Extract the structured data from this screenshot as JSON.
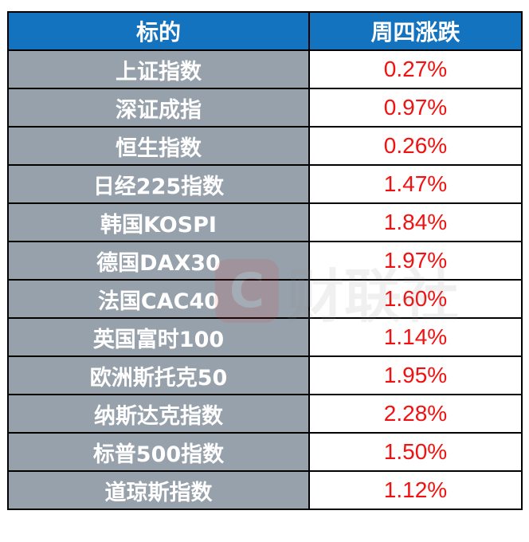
{
  "header": {
    "col1": "标的",
    "col2": "周四涨跌"
  },
  "colors": {
    "header_bg": "#1473bf",
    "name_bg": "#97a1ab",
    "value_text": "#f21010"
  },
  "rows": [
    {
      "name": "上证指数",
      "change": "0.27%"
    },
    {
      "name": "深证成指",
      "change": "0.97%"
    },
    {
      "name": "恒生指数",
      "change": "0.26%"
    },
    {
      "name": "日经225指数",
      "change": "1.47%"
    },
    {
      "name": "韩国KOSPI",
      "change": "1.84%"
    },
    {
      "name": "德国DAX30",
      "change": "1.97%"
    },
    {
      "name": "法国CAC40",
      "change": "1.60%"
    },
    {
      "name": "英国富时100",
      "change": "1.14%"
    },
    {
      "name": "欧洲斯托克50",
      "change": "1.95%"
    },
    {
      "name": "纳斯达克指数",
      "change": "2.28%"
    },
    {
      "name": "标普500指数",
      "change": "1.50%"
    },
    {
      "name": "道琼斯指数",
      "change": "1.12%"
    }
  ],
  "watermark": {
    "logo": "C",
    "text": "财联社"
  }
}
